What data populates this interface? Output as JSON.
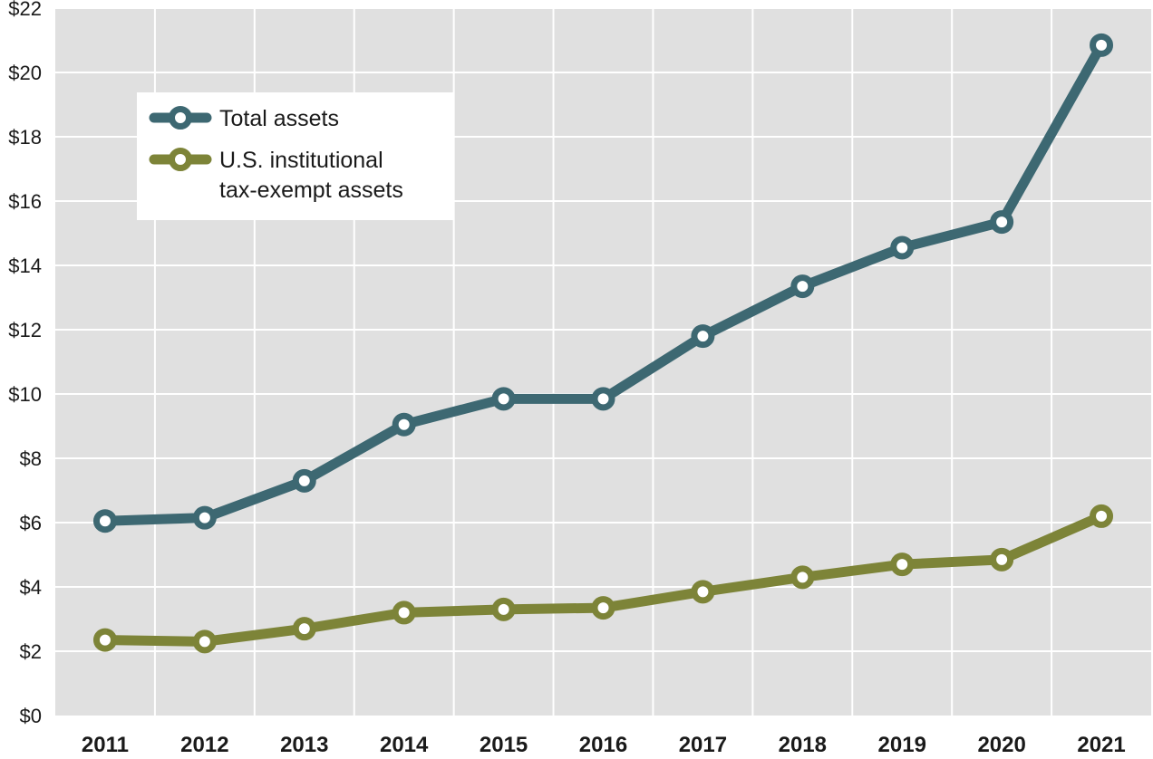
{
  "chart_data": {
    "type": "line",
    "title": "",
    "xlabel": "",
    "ylabel": "",
    "categories": [
      "2011",
      "2012",
      "2013",
      "2014",
      "2015",
      "2016",
      "2017",
      "2018",
      "2019",
      "2020",
      "2021"
    ],
    "ylim": [
      0,
      22
    ],
    "yticks": [
      0,
      2,
      4,
      6,
      8,
      10,
      12,
      14,
      16,
      18,
      20,
      22
    ],
    "ytick_labels": [
      "$0",
      "$2",
      "$4",
      "$6",
      "$8",
      "$10",
      "$12",
      "$14",
      "$16",
      "$18",
      "$20",
      "$22"
    ],
    "grid": true,
    "legend_position": "top-left",
    "series": [
      {
        "name": "Total assets",
        "color": "#3d6872",
        "values": [
          6.05,
          6.15,
          7.3,
          9.05,
          9.85,
          9.85,
          11.8,
          13.35,
          14.55,
          15.35,
          20.85
        ]
      },
      {
        "name": "U.S. institutional tax-exempt assets",
        "legend_lines": [
          "U.S. institutional",
          "tax-exempt assets"
        ],
        "color": "#7d8438",
        "values": [
          2.35,
          2.3,
          2.7,
          3.2,
          3.3,
          3.35,
          3.85,
          4.3,
          4.7,
          4.85,
          6.2
        ]
      }
    ]
  },
  "colors": {
    "plot_background": "#e0e0e0",
    "grid": "#ffffff"
  }
}
